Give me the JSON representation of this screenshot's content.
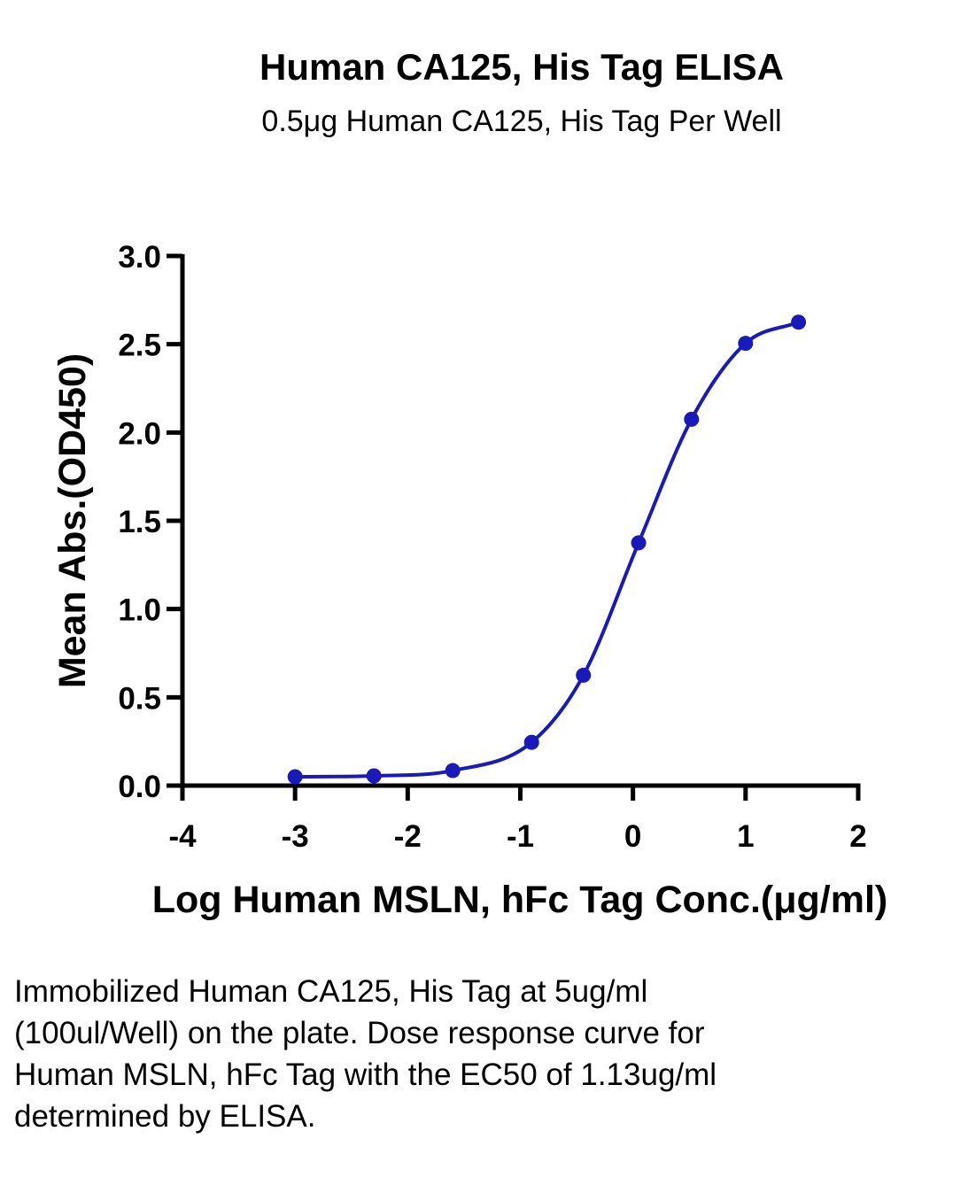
{
  "chart_data": {
    "type": "line",
    "title": "Human CA125, His Tag ELISA",
    "subtitle": "0.5μg Human CA125, His Tag Per Well",
    "xlabel": "Log Human MSLN, hFc Tag Conc.(μg/ml)",
    "ylabel": "Mean Abs.(OD450)",
    "xlim": [
      -4,
      2
    ],
    "ylim": [
      0,
      3
    ],
    "x_ticks": [
      "-4",
      "-3",
      "-2",
      "-1",
      "0",
      "1",
      "2"
    ],
    "y_ticks": [
      "0.0",
      "0.5",
      "1.0",
      "1.5",
      "2.0",
      "2.5",
      "3.0"
    ],
    "series": [
      {
        "x": [
          -3.0,
          -2.3,
          -1.6,
          -0.9,
          -0.44,
          0.05,
          0.52,
          1.0,
          1.47
        ],
        "y": [
          0.05,
          0.055,
          0.085,
          0.245,
          0.625,
          1.375,
          2.075,
          2.505,
          2.625
        ],
        "color": "#1a1ab8"
      }
    ],
    "grid": false,
    "legend": "none"
  },
  "description": "Immobilized Human CA125, His Tag at 5ug/ml (100ul/Well) on the plate. Dose response curve for Human MSLN, hFc Tag with the EC50 of 1.13ug/ml determined by ELISA."
}
